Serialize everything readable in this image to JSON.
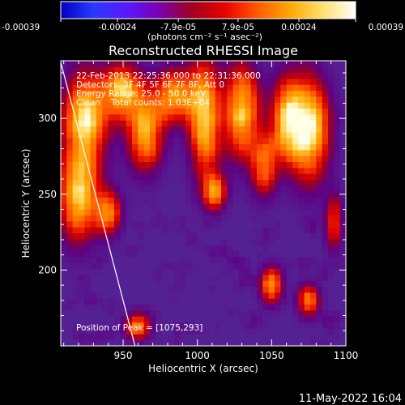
{
  "colorbar": {
    "tick_labels": [
      "-0.00039",
      "-0.00024",
      "-7.9e-05",
      "7.9e-05",
      "0.00024",
      "0.00039"
    ],
    "tick_values": [
      -0.00039,
      -0.00024,
      -7.9e-05,
      7.9e-05,
      0.00024,
      0.00039
    ],
    "range": [
      -0.00039,
      0.00039
    ],
    "units_label": "(photons cm⁻² s⁻¹ asec⁻²)",
    "gradient_colors": [
      "#0000c0",
      "#2a3aff",
      "#5a18ff",
      "#7a00b0",
      "#a00020",
      "#e80000",
      "#ff5a00",
      "#ffa800",
      "#ffe070",
      "#ffffff"
    ]
  },
  "chart_data": {
    "type": "heatmap",
    "title": "Reconstructed RHESSI Image",
    "xlabel": "Heliocentric X (arcsec)",
    "ylabel": "Heliocentric Y (arcsec)",
    "xlim": [
      908,
      1100
    ],
    "ylim": [
      150,
      338
    ],
    "x_ticks": [
      950,
      1000,
      1050,
      1100
    ],
    "y_ticks": [
      200,
      250,
      300
    ],
    "x_tick_labels": [
      "950",
      "1000",
      "1050",
      "1100"
    ],
    "y_tick_labels": [
      "200",
      "250",
      "300"
    ],
    "annotations": [
      "22-Feb-2013 22:25:36.000 to 22:31:36.000",
      "Detectors: 3F 4F 5F 6F 7F 8F, Att 0",
      "Energy Range: 25.0 - 50.0 keV",
      "Clean    Total counts: 1.03E+04"
    ],
    "peak_label": "Position of Peak = [1075,293]",
    "peak": [
      1075,
      293
    ],
    "limb_line": [
      [
        908,
        337
      ],
      [
        958,
        150
      ]
    ],
    "hot_regions": [
      {
        "x": 1075,
        "y": 293,
        "sx": 9,
        "sy": 22,
        "amp": 1.0
      },
      {
        "x": 1060,
        "y": 300,
        "sx": 7,
        "sy": 18,
        "amp": 0.75
      },
      {
        "x": 1030,
        "y": 305,
        "sx": 8,
        "sy": 20,
        "amp": 0.85
      },
      {
        "x": 1045,
        "y": 270,
        "sx": 6,
        "sy": 14,
        "amp": 0.6
      },
      {
        "x": 1005,
        "y": 300,
        "sx": 7,
        "sy": 25,
        "amp": 0.85
      },
      {
        "x": 985,
        "y": 315,
        "sx": 10,
        "sy": 12,
        "amp": 0.7
      },
      {
        "x": 965,
        "y": 290,
        "sx": 8,
        "sy": 16,
        "amp": 0.75
      },
      {
        "x": 950,
        "y": 318,
        "sx": 9,
        "sy": 12,
        "amp": 0.8
      },
      {
        "x": 925,
        "y": 300,
        "sx": 10,
        "sy": 20,
        "amp": 0.9
      },
      {
        "x": 920,
        "y": 250,
        "sx": 9,
        "sy": 20,
        "amp": 0.85
      },
      {
        "x": 940,
        "y": 238,
        "sx": 6,
        "sy": 10,
        "amp": 0.6
      },
      {
        "x": 1012,
        "y": 252,
        "sx": 5,
        "sy": 8,
        "amp": 0.7
      },
      {
        "x": 1050,
        "y": 190,
        "sx": 5,
        "sy": 8,
        "amp": 0.7
      },
      {
        "x": 1075,
        "y": 180,
        "sx": 5,
        "sy": 7,
        "amp": 0.6
      },
      {
        "x": 960,
        "y": 163,
        "sx": 6,
        "sy": 6,
        "amp": 0.6
      },
      {
        "x": 1092,
        "y": 232,
        "sx": 4,
        "sy": 12,
        "amp": 0.5
      }
    ]
  },
  "footer": {
    "timestamp": "11-May-2022 16:04"
  }
}
